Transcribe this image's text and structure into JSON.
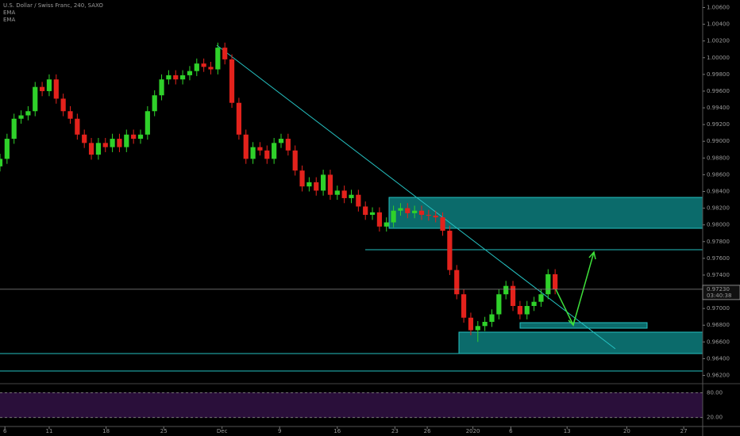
{
  "chart_data": {
    "type": "candlestick",
    "title": "U.S. Dollar / Swiss Franc, 240, SAXO",
    "indicators": [
      "EMA",
      "EMA"
    ],
    "up_color": "#2fd12a",
    "down_color": "#e3221c",
    "xlim": [
      0,
      100
    ],
    "xticks": [
      {
        "value": 0.7,
        "label": "6"
      },
      {
        "value": 7,
        "label": "11"
      },
      {
        "value": 15.1,
        "label": "18"
      },
      {
        "value": 23.3,
        "label": "25"
      },
      {
        "value": 31.6,
        "label": "Dec"
      },
      {
        "value": 39.8,
        "label": "9"
      },
      {
        "value": 48,
        "label": "16"
      },
      {
        "value": 56.2,
        "label": "23"
      },
      {
        "value": 60.8,
        "label": "26"
      },
      {
        "value": 67.3,
        "label": "2020"
      },
      {
        "value": 72.7,
        "label": "6"
      },
      {
        "value": 80.7,
        "label": "13"
      },
      {
        "value": 89.2,
        "label": "20"
      },
      {
        "value": 97.3,
        "label": "27"
      }
    ],
    "ylim": [
      0.9611,
      1.0069
    ],
    "yticks": [
      {
        "value": 1.006,
        "label": "1.00600"
      },
      {
        "value": 1.004,
        "label": "1.00400"
      },
      {
        "value": 1.002,
        "label": "1.00200"
      },
      {
        "value": 1.0,
        "label": "1.00000"
      },
      {
        "value": 0.998,
        "label": "0.99800"
      },
      {
        "value": 0.996,
        "label": "0.99600"
      },
      {
        "value": 0.994,
        "label": "0.99400"
      },
      {
        "value": 0.992,
        "label": "0.99200"
      },
      {
        "value": 0.99,
        "label": "0.99000"
      },
      {
        "value": 0.988,
        "label": "0.98800"
      },
      {
        "value": 0.986,
        "label": "0.98600"
      },
      {
        "value": 0.984,
        "label": "0.98400"
      },
      {
        "value": 0.982,
        "label": "0.98200"
      },
      {
        "value": 0.98,
        "label": "0.98000"
      },
      {
        "value": 0.978,
        "label": "0.97800"
      },
      {
        "value": 0.976,
        "label": "0.97600"
      },
      {
        "value": 0.974,
        "label": "0.97400"
      },
      {
        "value": 0.97,
        "label": "0.97000"
      },
      {
        "value": 0.968,
        "label": "0.96800"
      },
      {
        "value": 0.966,
        "label": "0.96600"
      },
      {
        "value": 0.964,
        "label": "0.96400"
      },
      {
        "value": 0.962,
        "label": "0.96200"
      }
    ],
    "last_price": {
      "value": 0.9723,
      "label": "0.97230"
    },
    "countdown": "03:40:38",
    "indicator_lim": [
      0,
      100
    ],
    "indicator_ticks": [
      {
        "value": 80,
        "label": "80.00"
      },
      {
        "value": 20,
        "label": "20.00"
      }
    ],
    "open": [
      0.987,
      0.9879,
      0.9903,
      0.9927,
      0.9931,
      0.9936,
      0.9965,
      0.996,
      0.9974,
      0.9951,
      0.9936,
      0.9927,
      0.9908,
      0.9898,
      0.9884,
      0.9898,
      0.9893,
      0.9903,
      0.9893,
      0.9908,
      0.9903,
      0.9908,
      0.9936,
      0.9955,
      0.9974,
      0.9979,
      0.9974,
      0.9979,
      0.9984,
      0.9993,
      0.9989,
      0.9986,
      1.0012,
      0.9998,
      0.9946,
      0.9908,
      0.9879,
      0.9893,
      0.9889,
      0.9879,
      0.9898,
      0.9903,
      0.9889,
      0.9865,
      0.9846,
      0.9851,
      0.9841,
      0.986,
      0.9836,
      0.9841,
      0.9832,
      0.9836,
      0.9822,
      0.9812,
      0.9815,
      0.9798,
      0.9803,
      0.9817,
      0.982,
      0.9814,
      0.9817,
      0.9812,
      0.9811,
      0.9809,
      0.9793,
      0.9746,
      0.9717,
      0.9689,
      0.9674,
      0.9679,
      0.9684,
      0.9693,
      0.9717,
      0.9727,
      0.9703,
      0.9693,
      0.9703,
      0.9708,
      0.9717,
      0.9741
    ],
    "high": [
      0.9885,
      0.9909,
      0.9933,
      0.9937,
      0.9942,
      0.9971,
      0.9971,
      0.998,
      0.998,
      0.9957,
      0.9942,
      0.9933,
      0.9914,
      0.9904,
      0.9904,
      0.9904,
      0.9909,
      0.9909,
      0.9914,
      0.9914,
      0.9914,
      0.9942,
      0.9961,
      0.998,
      0.9985,
      0.9985,
      0.9985,
      0.999,
      0.9999,
      0.9999,
      0.9995,
      1.0018,
      1.0018,
      1.0004,
      0.9952,
      0.9914,
      0.9899,
      0.9899,
      0.9895,
      0.9904,
      0.9909,
      0.9909,
      0.9895,
      0.9871,
      0.9857,
      0.9857,
      0.9866,
      0.9866,
      0.9847,
      0.9847,
      0.9842,
      0.9842,
      0.9828,
      0.9821,
      0.9821,
      0.9809,
      0.9823,
      0.9826,
      0.9826,
      0.9823,
      0.9823,
      0.9818,
      0.9817,
      0.9815,
      0.9799,
      0.9752,
      0.9723,
      0.9695,
      0.9685,
      0.969,
      0.9699,
      0.9723,
      0.9733,
      0.9733,
      0.9709,
      0.9709,
      0.9714,
      0.9723,
      0.9747,
      0.9747
    ],
    "low": [
      0.9864,
      0.9873,
      0.9897,
      0.9921,
      0.9925,
      0.993,
      0.9954,
      0.9954,
      0.9945,
      0.993,
      0.9921,
      0.9902,
      0.9892,
      0.9878,
      0.9878,
      0.9887,
      0.9887,
      0.9887,
      0.9887,
      0.9897,
      0.9897,
      0.9902,
      0.993,
      0.9949,
      0.9968,
      0.9968,
      0.9968,
      0.9973,
      0.9978,
      0.9983,
      0.998,
      0.998,
      0.9992,
      0.994,
      0.9902,
      0.9873,
      0.9873,
      0.9883,
      0.9873,
      0.9873,
      0.9892,
      0.9883,
      0.9859,
      0.984,
      0.984,
      0.9835,
      0.9835,
      0.983,
      0.983,
      0.9826,
      0.9826,
      0.9816,
      0.9806,
      0.9806,
      0.9792,
      0.9792,
      0.9797,
      0.9811,
      0.9808,
      0.9808,
      0.9806,
      0.9805,
      0.9803,
      0.9787,
      0.974,
      0.9711,
      0.9683,
      0.9668,
      0.966,
      0.9673,
      0.9678,
      0.9687,
      0.9711,
      0.9697,
      0.9687,
      0.9687,
      0.9697,
      0.9702,
      0.9711,
      0.9717
    ],
    "close": [
      0.9879,
      0.9903,
      0.9927,
      0.9931,
      0.9936,
      0.9965,
      0.996,
      0.9974,
      0.9951,
      0.9936,
      0.9927,
      0.9908,
      0.9898,
      0.9884,
      0.9898,
      0.9893,
      0.9903,
      0.9893,
      0.9908,
      0.9903,
      0.9908,
      0.9936,
      0.9955,
      0.9974,
      0.9979,
      0.9974,
      0.9979,
      0.9984,
      0.9993,
      0.9989,
      0.9986,
      1.0012,
      0.9998,
      0.9946,
      0.9908,
      0.9879,
      0.9893,
      0.9889,
      0.9879,
      0.9898,
      0.9903,
      0.9889,
      0.9865,
      0.9846,
      0.9851,
      0.9841,
      0.986,
      0.9836,
      0.9841,
      0.9832,
      0.9836,
      0.9822,
      0.9812,
      0.9815,
      0.9798,
      0.9803,
      0.9817,
      0.982,
      0.9814,
      0.9817,
      0.9812,
      0.9811,
      0.9809,
      0.9793,
      0.9746,
      0.9717,
      0.9689,
      0.9674,
      0.9679,
      0.9684,
      0.9693,
      0.9717,
      0.9727,
      0.9703,
      0.9693,
      0.9703,
      0.9708,
      0.9717,
      0.9741,
      0.9723
    ]
  }
}
